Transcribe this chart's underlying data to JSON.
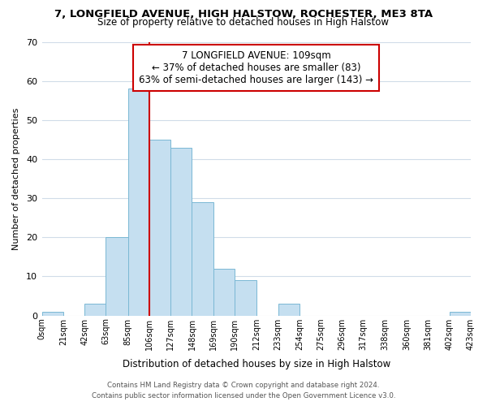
{
  "title": "7, LONGFIELD AVENUE, HIGH HALSTOW, ROCHESTER, ME3 8TA",
  "subtitle": "Size of property relative to detached houses in High Halstow",
  "xlabel": "Distribution of detached houses by size in High Halstow",
  "ylabel": "Number of detached properties",
  "bar_color": "#c5dff0",
  "bar_edge_color": "#7ab8d4",
  "background_color": "#ffffff",
  "grid_color": "#d0dce8",
  "reference_line_x": 106,
  "reference_line_color": "#cc0000",
  "bin_edges": [
    0,
    21,
    42,
    63,
    85,
    106,
    127,
    148,
    169,
    190,
    212,
    233,
    254,
    275,
    296,
    317,
    338,
    360,
    381,
    402,
    423
  ],
  "bin_labels": [
    "0sqm",
    "21sqm",
    "42sqm",
    "63sqm",
    "85sqm",
    "106sqm",
    "127sqm",
    "148sqm",
    "169sqm",
    "190sqm",
    "212sqm",
    "233sqm",
    "254sqm",
    "275sqm",
    "296sqm",
    "317sqm",
    "338sqm",
    "360sqm",
    "381sqm",
    "402sqm",
    "423sqm"
  ],
  "counts": [
    1,
    0,
    3,
    20,
    58,
    45,
    43,
    29,
    12,
    9,
    0,
    3,
    0,
    0,
    0,
    0,
    0,
    0,
    0,
    1
  ],
  "ylim": [
    0,
    70
  ],
  "yticks": [
    0,
    10,
    20,
    30,
    40,
    50,
    60,
    70
  ],
  "annotation_text": "7 LONGFIELD AVENUE: 109sqm\n← 37% of detached houses are smaller (83)\n63% of semi-detached houses are larger (143) →",
  "annotation_box_color": "#ffffff",
  "annotation_box_edge": "#cc0000",
  "footer_line1": "Contains HM Land Registry data © Crown copyright and database right 2024.",
  "footer_line2": "Contains public sector information licensed under the Open Government Licence v3.0."
}
